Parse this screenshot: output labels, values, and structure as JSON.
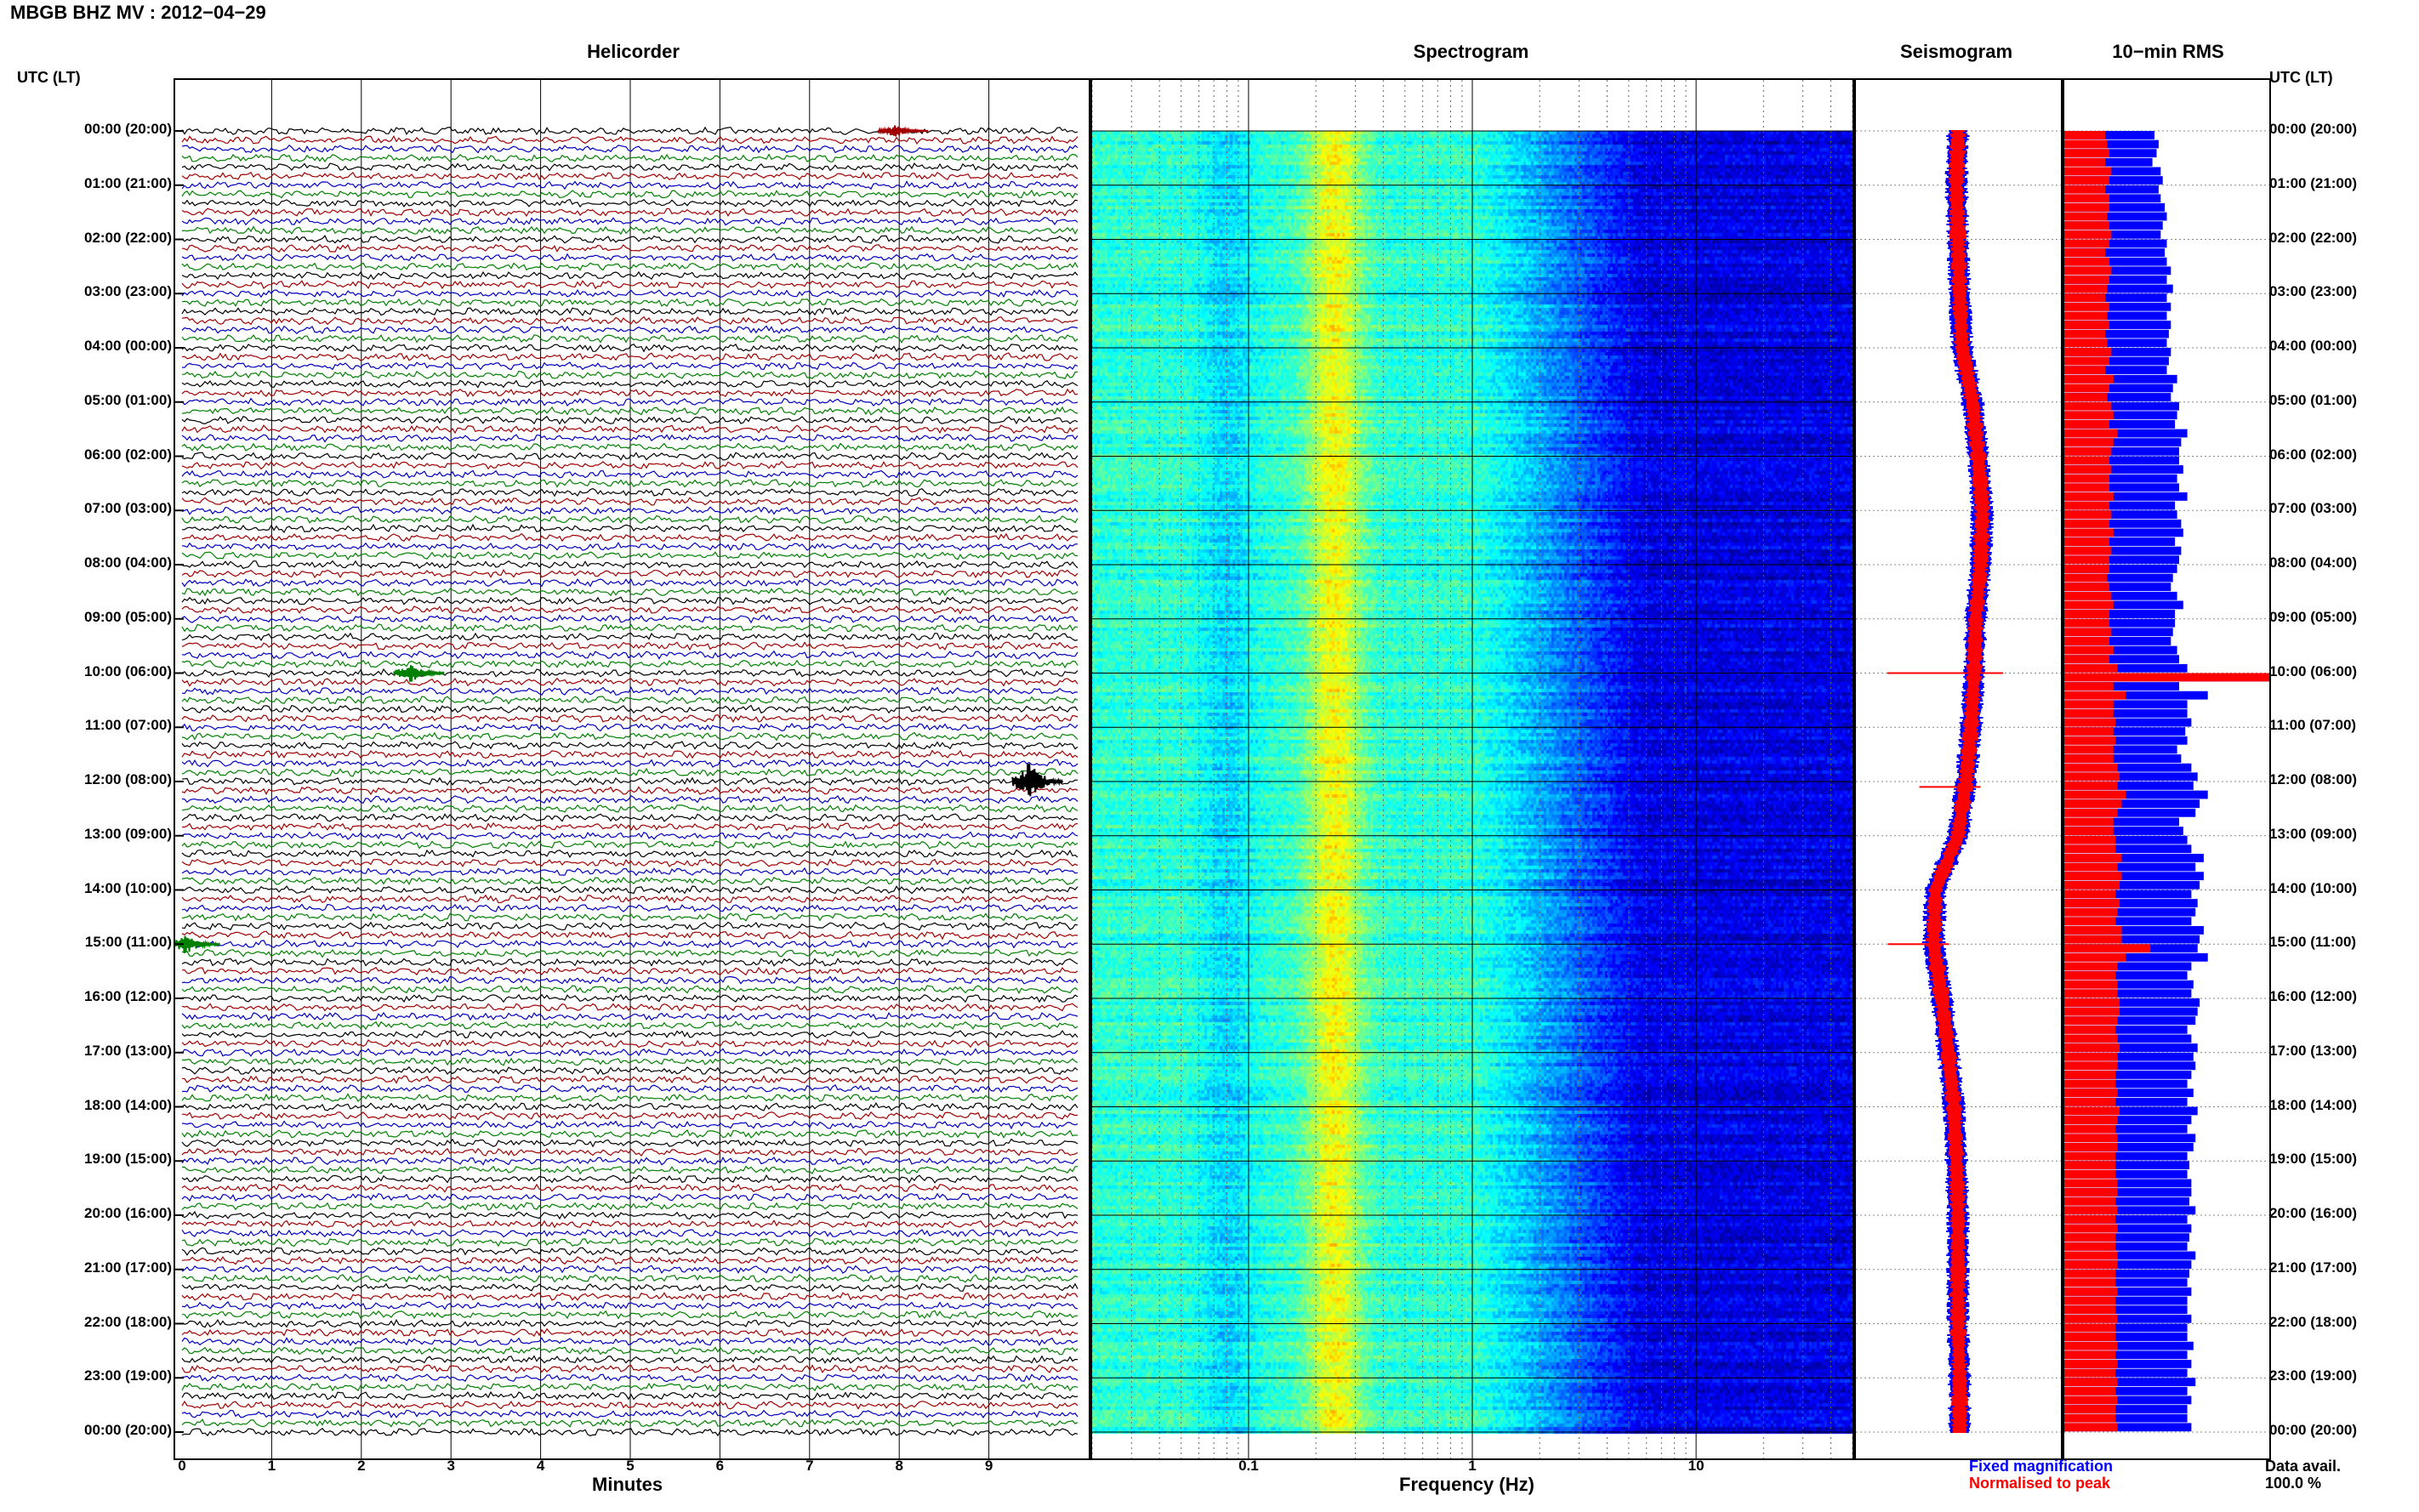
{
  "header": {
    "title": "MBGB BHZ MV : 2012−04−29"
  },
  "axis": {
    "left_label": "UTC (LT)",
    "right_label": "UTC (LT)"
  },
  "panels": {
    "helicorder": "Helicorder",
    "spectrogram": "Spectrogram",
    "seismogram": "Seismogram",
    "rms": "10−min RMS"
  },
  "chart_data": {
    "type": "heatmap",
    "time_labels": [
      "00:00 (20:00)",
      "01:00 (21:00)",
      "02:00 (22:00)",
      "03:00 (23:00)",
      "04:00 (00:00)",
      "05:00 (01:00)",
      "06:00 (02:00)",
      "07:00 (03:00)",
      "08:00 (04:00)",
      "09:00 (05:00)",
      "10:00 (06:00)",
      "11:00 (07:00)",
      "12:00 (08:00)",
      "13:00 (09:00)",
      "14:00 (10:00)",
      "15:00 (11:00)",
      "16:00 (12:00)",
      "17:00 (13:00)",
      "18:00 (14:00)",
      "19:00 (15:00)",
      "20:00 (16:00)",
      "21:00 (17:00)",
      "22:00 (18:00)",
      "23:00 (19:00)",
      "00:00 (20:00)"
    ],
    "helicorder": {
      "xlabel": "Minutes",
      "x_ticks": [
        "0",
        "1",
        "2",
        "3",
        "4",
        "5",
        "6",
        "7",
        "8",
        "9"
      ],
      "xlim": [
        0,
        10
      ],
      "traces_per_hour": 6,
      "trace_colors": [
        "#000000",
        "#a00000",
        "#0000c0",
        "#008000"
      ],
      "events": [
        {
          "hour": 0,
          "minute": 8.0,
          "color": "#a00000",
          "amplitude": "medium"
        },
        {
          "hour": 12,
          "minute": 9.5,
          "color": "#000000",
          "amplitude": "large"
        },
        {
          "hour": 10,
          "minute": 2.6,
          "color": "#008000",
          "amplitude": "small"
        },
        {
          "hour": 15,
          "minute": 0.1,
          "color": "#008000",
          "amplitude": "small"
        }
      ]
    },
    "spectrogram": {
      "xlabel": "Frequency (Hz)",
      "x_scale": "log",
      "xlim": [
        0.02,
        50
      ],
      "x_ticks": [
        "0.1",
        "1",
        "10"
      ],
      "colormap": "jet"
    },
    "seismogram": {
      "legend": {
        "fixed": "Fixed magnification",
        "normalised": "Normalised to peak"
      },
      "colors": {
        "fixed": "#0000ff",
        "normalised": "#ff0000"
      },
      "offsets": [
        0,
        -0.02,
        0,
        0.02,
        0.05,
        0.18,
        0.25,
        0.3,
        0.28,
        0.22,
        0.2,
        0.16,
        0.1,
        0,
        -0.28,
        -0.3,
        -0.2,
        -0.12,
        -0.05,
        -0.02,
        0,
        0,
        0,
        0.02,
        0.02
      ],
      "spikes": [
        {
          "hour": 10,
          "extent": 0.85
        },
        {
          "hour": 12.1,
          "extent": 0.45
        },
        {
          "hour": 15,
          "extent": 0.45
        }
      ]
    },
    "rms": {
      "colors": {
        "fixed": "#0000ff",
        "normalised": "#ff0000"
      },
      "blue_relative": [
        0.44,
        0.46,
        0.45,
        0.43,
        0.47,
        0.48,
        0.46,
        0.47,
        0.49,
        0.5,
        0.48,
        0.47,
        0.5,
        0.49,
        0.5,
        0.52,
        0.5,
        0.53,
        0.5,
        0.52,
        0.5,
        0.52,
        0.51,
        0.5,
        0.52,
        0.51,
        0.5,
        0.55,
        0.53,
        0.52,
        0.56,
        0.55,
        0.54,
        0.6,
        0.57,
        0.56,
        0.56,
        0.58,
        0.55,
        0.56,
        0.6,
        0.54,
        0.55,
        0.57,
        0.58,
        0.54,
        0.57,
        0.56,
        0.55,
        0.53,
        0.52,
        0.55,
        0.58,
        0.54,
        0.54,
        0.53,
        0.52,
        0.55,
        0.56,
        0.6,
        1.0,
        0.56,
        0.7,
        0.6,
        0.6,
        0.62,
        0.59,
        0.6,
        0.55,
        0.57,
        0.62,
        0.65,
        0.63,
        0.7,
        0.66,
        0.64,
        0.56,
        0.58,
        0.6,
        0.62,
        0.68,
        0.64,
        0.68,
        0.66,
        0.62,
        0.65,
        0.64,
        0.62,
        0.68,
        0.66,
        0.65,
        0.7,
        0.62,
        0.6,
        0.63,
        0.62,
        0.66,
        0.65,
        0.64,
        0.6,
        0.62,
        0.65,
        0.63,
        0.64,
        0.62,
        0.6,
        0.63,
        0.6,
        0.65,
        0.62,
        0.6,
        0.64,
        0.63,
        0.6,
        0.61,
        0.6,
        0.62,
        0.62,
        0.61,
        0.64,
        0.6,
        0.62,
        0.61,
        0.6,
        0.64,
        0.62,
        0.61,
        0.6,
        0.62,
        0.6,
        0.6,
        0.62,
        0.6,
        0.6,
        0.63,
        0.6,
        0.62,
        0.6,
        0.64,
        0.6,
        0.62,
        0.6,
        0.6,
        0.62
      ],
      "red_relative": [
        0.2,
        0.21,
        0.22,
        0.2,
        0.23,
        0.22,
        0.2,
        0.22,
        0.22,
        0.21,
        0.22,
        0.23,
        0.22,
        0.2,
        0.22,
        0.23,
        0.22,
        0.21,
        0.2,
        0.22,
        0.21,
        0.22,
        0.2,
        0.21,
        0.23,
        0.22,
        0.2,
        0.24,
        0.22,
        0.21,
        0.23,
        0.24,
        0.22,
        0.26,
        0.24,
        0.23,
        0.22,
        0.23,
        0.22,
        0.22,
        0.24,
        0.22,
        0.23,
        0.22,
        0.24,
        0.22,
        0.23,
        0.22,
        0.22,
        0.21,
        0.22,
        0.23,
        0.24,
        0.22,
        0.22,
        0.23,
        0.22,
        0.24,
        0.22,
        0.26,
        1.0,
        0.24,
        0.3,
        0.24,
        0.24,
        0.25,
        0.24,
        0.25,
        0.24,
        0.24,
        0.26,
        0.27,
        0.26,
        0.3,
        0.28,
        0.26,
        0.24,
        0.24,
        0.25,
        0.25,
        0.28,
        0.26,
        0.28,
        0.27,
        0.25,
        0.27,
        0.26,
        0.25,
        0.28,
        0.28,
        0.42,
        0.3,
        0.26,
        0.25,
        0.26,
        0.26,
        0.27,
        0.27,
        0.26,
        0.25,
        0.26,
        0.27,
        0.26,
        0.26,
        0.25,
        0.25,
        0.26,
        0.25,
        0.27,
        0.26,
        0.25,
        0.26,
        0.26,
        0.25,
        0.25,
        0.25,
        0.26,
        0.26,
        0.25,
        0.26,
        0.25,
        0.26,
        0.25,
        0.25,
        0.26,
        0.26,
        0.25,
        0.25,
        0.26,
        0.25,
        0.25,
        0.26,
        0.25,
        0.25,
        0.26,
        0.25,
        0.26,
        0.25,
        0.26,
        0.25,
        0.26,
        0.25,
        0.25,
        0.26
      ],
      "data_avail_label": "Data avail.",
      "data_avail_value": "100.0 %"
    }
  }
}
